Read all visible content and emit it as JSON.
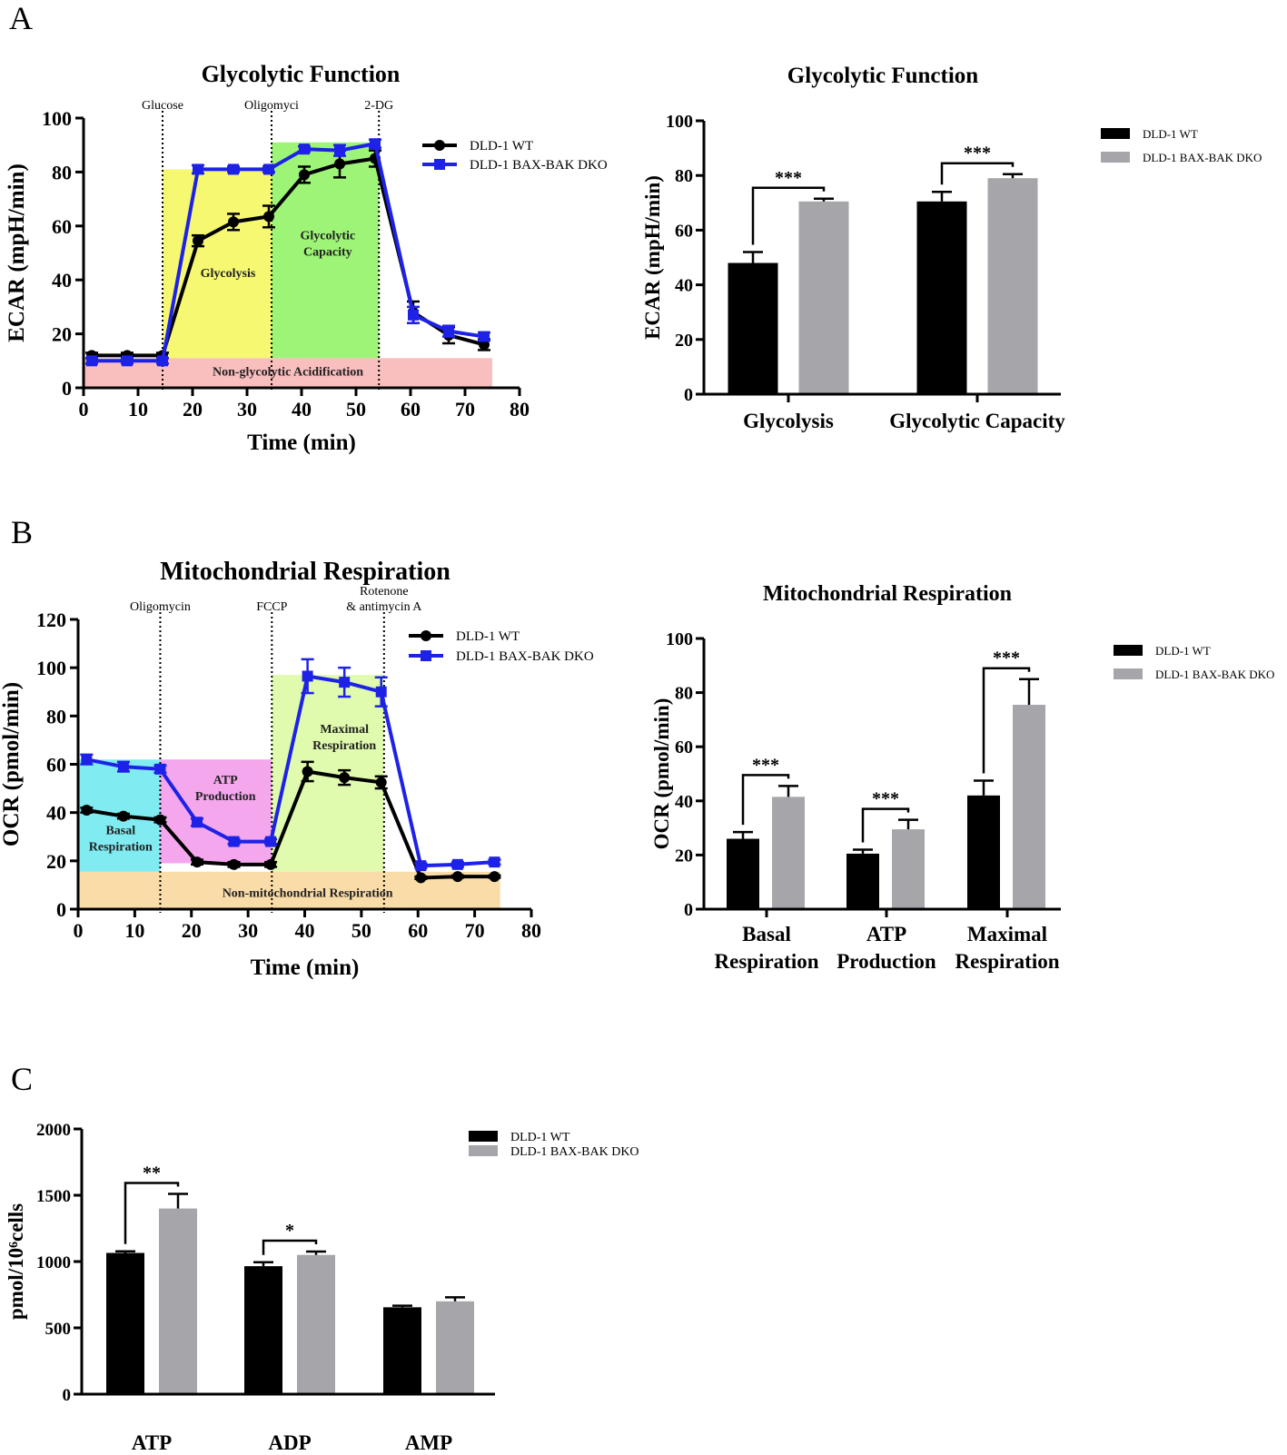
{
  "panel_labels": [
    "A",
    "B",
    "C"
  ],
  "colors": {
    "wt": "#000000",
    "dko": "#1e22e6",
    "bar_wt": "#000000",
    "bar_dko": "#a6a6aa",
    "yellow": "#f4f542",
    "green": "#7cf04a",
    "red": "#f7a8a8",
    "cyan": "#56e6ee",
    "magenta": "#f08ae6",
    "lightgreen": "#d6fa92",
    "orange": "#f8d08c"
  },
  "chart_data": [
    {
      "id": "A1",
      "type": "line",
      "title": "Glycolytic Function",
      "xlabel": "Time (min)",
      "ylabel": "ECAR (mpH/min)",
      "xlim": [
        0,
        80
      ],
      "ylim": [
        0,
        100
      ],
      "xticks": [
        0,
        10,
        20,
        30,
        40,
        50,
        60,
        70,
        80
      ],
      "yticks": [
        0,
        20,
        40,
        60,
        80,
        100
      ],
      "legend": "top-right",
      "injections": [
        {
          "x": 14.5,
          "label": "Glucose"
        },
        {
          "x": 34.5,
          "label": "Oligomyci"
        },
        {
          "x": 54.2,
          "label": "2-DG"
        }
      ],
      "regions": [
        {
          "x0": 14.5,
          "x1": 34.5,
          "y0": 11,
          "y1": 81,
          "color": "yellow",
          "label": [
            "Glycolysis"
          ],
          "lx": 26.5,
          "ly": 41
        },
        {
          "x0": 34.5,
          "x1": 54.2,
          "y0": 11,
          "y1": 91,
          "color": "green",
          "label": [
            "Glycolytic",
            "Capacity"
          ],
          "lx": 44.8,
          "ly": 55
        },
        {
          "x0": 0.2,
          "x1": 75,
          "y0": 0,
          "y1": 11,
          "color": "red",
          "label": [
            "Non-glycolytic Acidification"
          ],
          "lx": 37.5,
          "ly": 4.5
        }
      ],
      "series": [
        {
          "name": "DLD-1 WT",
          "marker": "circle",
          "color": "wt",
          "x": [
            1.5,
            8,
            14.5,
            21,
            27.5,
            34,
            40.5,
            47,
            53.5,
            60.5,
            67,
            73.5
          ],
          "y": [
            12,
            12,
            12,
            54.5,
            61.5,
            63.5,
            79,
            83,
            85,
            28,
            19.5,
            16
          ],
          "err": [
            1,
            1,
            1,
            2,
            3,
            4,
            3,
            5,
            3,
            4,
            3,
            2
          ]
        },
        {
          "name": "DLD-1 BAX-BAK DKO",
          "marker": "square",
          "color": "dko",
          "x": [
            1.5,
            8,
            14.5,
            21,
            27.5,
            34,
            40.5,
            47,
            53.5,
            60.5,
            67,
            73.5
          ],
          "y": [
            10,
            10,
            10,
            81,
            81,
            81,
            88.5,
            88,
            90.5,
            27,
            21,
            19
          ],
          "err": [
            1,
            1,
            1,
            1.5,
            1,
            1,
            1,
            2,
            1.5,
            3,
            2,
            1.5
          ]
        }
      ]
    },
    {
      "id": "A2",
      "type": "bar",
      "title": "Glycolytic Function",
      "ylabel": "ECAR (mpH/min)",
      "categories": [
        "Glycolysis",
        "Glycolytic Capacity"
      ],
      "ylim": [
        0,
        100
      ],
      "yticks": [
        0,
        20,
        40,
        60,
        80,
        100
      ],
      "legend": "right",
      "series": [
        {
          "name": "DLD-1 WT",
          "color": "bar_wt",
          "values": [
            48,
            70.5
          ],
          "err": [
            4,
            3.5
          ]
        },
        {
          "name": "DLD-1 BAX-BAK DKO",
          "color": "bar_dko",
          "values": [
            70.5,
            79
          ],
          "err": [
            1,
            1.5
          ]
        }
      ],
      "significance": [
        "***",
        "***"
      ]
    },
    {
      "id": "B1",
      "type": "line",
      "title": "Mitochondrial Respiration",
      "xlabel": "Time (min)",
      "ylabel": "OCR (pmol/min)",
      "xlim": [
        0,
        80
      ],
      "ylim": [
        0,
        120
      ],
      "xticks": [
        0,
        10,
        20,
        30,
        40,
        50,
        60,
        70,
        80
      ],
      "yticks": [
        0,
        20,
        40,
        60,
        80,
        100,
        120
      ],
      "legend": "top-right",
      "injections": [
        {
          "x": 14.5,
          "label": "Oligomycin"
        },
        {
          "x": 34.2,
          "label": "FCCP"
        },
        {
          "x": 54,
          "label": "Rotenone",
          "label2": "& antimycin A"
        }
      ],
      "regions": [
        {
          "x0": 0.2,
          "x1": 14.5,
          "y0": 15.5,
          "y1": 62,
          "color": "cyan",
          "label": [
            "Basal",
            "Respiration"
          ],
          "lx": 7.5,
          "ly": 31
        },
        {
          "x0": 14.5,
          "x1": 34.2,
          "y0": 19,
          "y1": 62,
          "color": "magenta",
          "label": [
            "ATP",
            "Production"
          ],
          "lx": 26,
          "ly": 52
        },
        {
          "x0": 34.2,
          "x1": 54,
          "y0": 15.5,
          "y1": 97,
          "color": "lightgreen",
          "label": [
            "Maximal",
            "Respiration"
          ],
          "lx": 47,
          "ly": 73
        },
        {
          "x0": 0.2,
          "x1": 74.5,
          "y0": 0,
          "y1": 15.5,
          "color": "orange",
          "label": [
            "Non-mitochondrial Respiration"
          ],
          "lx": 40.5,
          "ly": 5
        }
      ],
      "series": [
        {
          "name": "DLD-1 WT",
          "marker": "circle",
          "color": "wt",
          "x": [
            1.5,
            8,
            14.5,
            21,
            27.5,
            34,
            40.5,
            47,
            53.5,
            60.5,
            67,
            73.5
          ],
          "y": [
            41,
            38.5,
            37,
            19.5,
            18.5,
            18.5,
            57,
            54.5,
            52.5,
            13,
            13.5,
            13.5
          ],
          "err": [
            1,
            1,
            1,
            1,
            1,
            1,
            4,
            3,
            2.5,
            0.5,
            0.5,
            0.5
          ]
        },
        {
          "name": "DLD-1 BAX-BAK DKO",
          "marker": "square",
          "color": "dko",
          "x": [
            1.5,
            8,
            14.5,
            21,
            27.5,
            34,
            40.5,
            47,
            53.5,
            60.5,
            67,
            73.5
          ],
          "y": [
            62,
            59,
            58,
            36,
            28,
            28,
            96.5,
            94,
            90,
            18,
            18.5,
            19.5
          ],
          "err": [
            2,
            2,
            1.5,
            1.5,
            1,
            1,
            7,
            6,
            6,
            1,
            1,
            1
          ]
        }
      ]
    },
    {
      "id": "B2",
      "type": "bar",
      "title": "Mitochondrial Respiration",
      "ylabel": "OCR (pmol/min)",
      "categories": [
        [
          "Basal",
          "Respiration"
        ],
        [
          "ATP",
          "Production"
        ],
        [
          "Maximal",
          "Respiration"
        ]
      ],
      "ylim": [
        0,
        100
      ],
      "yticks": [
        0,
        20,
        40,
        60,
        80,
        100
      ],
      "legend": "right",
      "series": [
        {
          "name": "DLD-1 WT",
          "color": "bar_wt",
          "values": [
            26,
            20.5,
            42
          ],
          "err": [
            2.5,
            1.5,
            5.5
          ]
        },
        {
          "name": "DLD-1 BAX-BAK DKO",
          "color": "bar_dko",
          "values": [
            41.5,
            29.5,
            75.5
          ],
          "err": [
            4,
            3.5,
            9.5
          ]
        }
      ],
      "significance": [
        "***",
        "***",
        "***"
      ]
    },
    {
      "id": "C",
      "type": "bar",
      "ylabel": "pmol/10⁶cells",
      "categories": [
        "ATP",
        "ADP",
        "AMP"
      ],
      "ylim": [
        0,
        2000
      ],
      "yticks": [
        0,
        500,
        1000,
        1500,
        2000
      ],
      "legend": "top",
      "series": [
        {
          "name": "DLD-1 WT",
          "color": "bar_wt",
          "values": [
            1065,
            965,
            655
          ],
          "err": [
            12,
            30,
            12
          ]
        },
        {
          "name": "DLD-1 BAX-BAK DKO",
          "color": "bar_dko",
          "values": [
            1400,
            1050,
            700
          ],
          "err": [
            110,
            25,
            30
          ]
        }
      ],
      "significance": [
        "**",
        "*",
        ""
      ]
    }
  ]
}
